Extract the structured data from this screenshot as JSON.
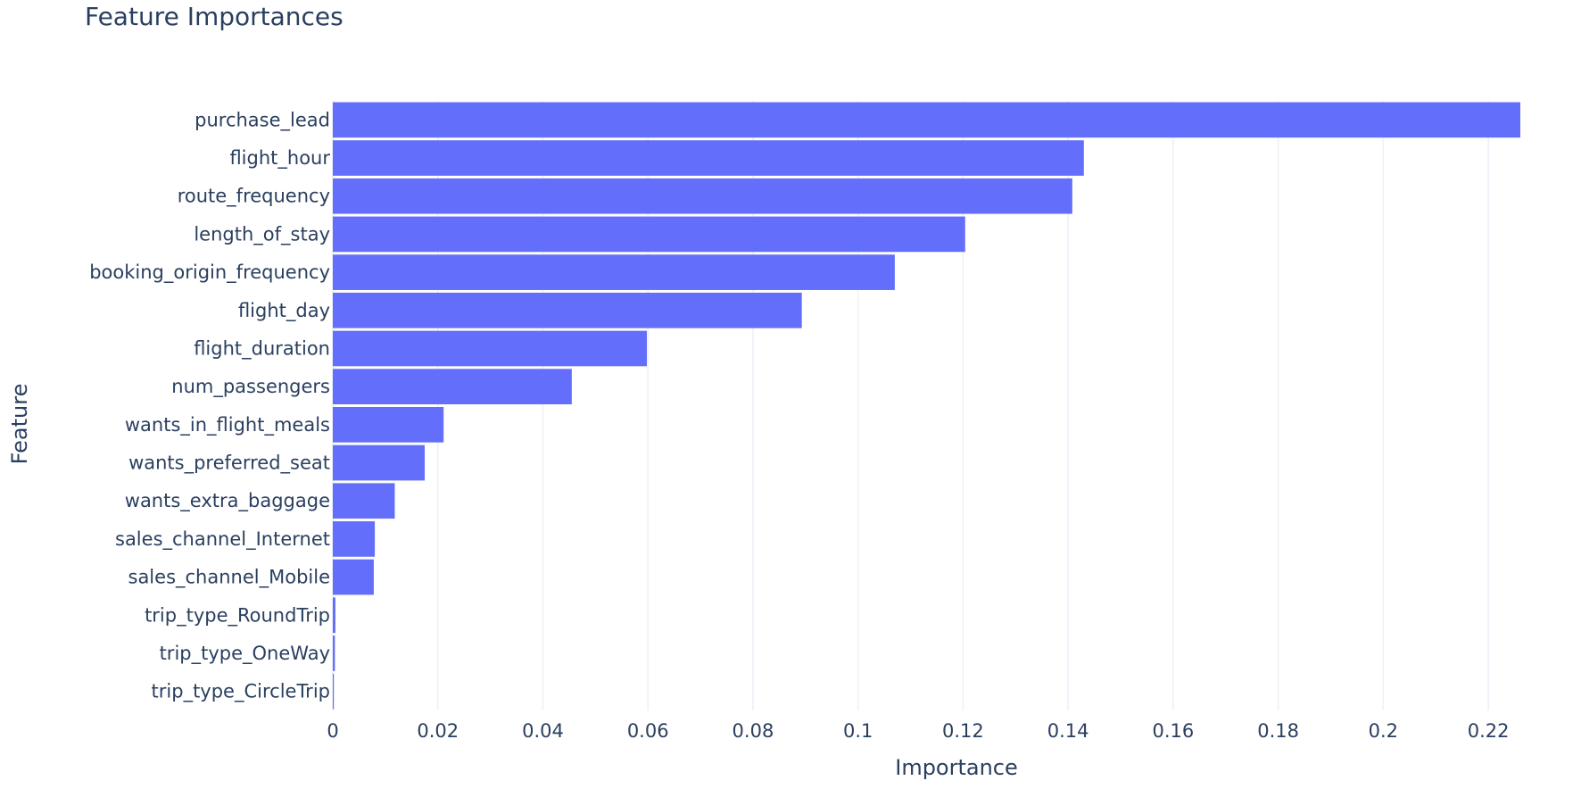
{
  "chart_data": {
    "type": "bar",
    "orientation": "horizontal",
    "title": "Feature Importances",
    "xlabel": "Importance",
    "ylabel": "Feature",
    "categories": [
      "purchase_lead",
      "flight_hour",
      "route_frequency",
      "length_of_stay",
      "booking_origin_frequency",
      "flight_day",
      "flight_duration",
      "num_passengers",
      "wants_in_flight_meals",
      "wants_preferred_seat",
      "wants_extra_baggage",
      "sales_channel_Internet",
      "sales_channel_Mobile",
      "trip_type_RoundTrip",
      "trip_type_OneWay",
      "trip_type_CircleTrip"
    ],
    "values": [
      0.2261,
      0.143,
      0.1408,
      0.1204,
      0.107,
      0.0893,
      0.0598,
      0.0455,
      0.0211,
      0.0175,
      0.0118,
      0.008,
      0.0078,
      0.0005,
      0.0004,
      0.0002
    ],
    "xlim": [
      0,
      0.2261
    ],
    "xticks": [
      0,
      0.02,
      0.04,
      0.06,
      0.08,
      0.1,
      0.12,
      0.14,
      0.16,
      0.18,
      0.2,
      0.22
    ],
    "xtick_labels": [
      "0",
      "0.02",
      "0.04",
      "0.06",
      "0.08",
      "0.1",
      "0.12",
      "0.14",
      "0.16",
      "0.18",
      "0.2",
      "0.22"
    ],
    "grid": true,
    "bar_color": "#636efa",
    "grid_color": "#ebf0f8",
    "text_color": "#2a3f5f"
  }
}
